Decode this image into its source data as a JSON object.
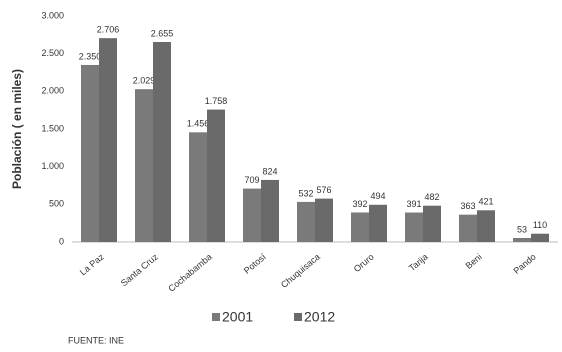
{
  "chart_data": {
    "type": "bar",
    "y_label": "Población ( en miles)",
    "source": "FUENTE: INE",
    "categories": [
      "La Paz",
      "Santa Cruz",
      "Cochabamba",
      "Potosí",
      "Chuquisaca",
      "Oruro",
      "Tarija",
      "Beni",
      "Pando"
    ],
    "series": [
      {
        "name": "2001",
        "color": "#7a7a7a",
        "values": [
          2350,
          2029,
          1456,
          709,
          532,
          392,
          391,
          363,
          53
        ],
        "value_labels": [
          "2.350",
          "2.029",
          "1.456",
          "709",
          "532",
          "392",
          "391",
          "363",
          "53"
        ]
      },
      {
        "name": "2012",
        "color": "#6a6a6a",
        "values": [
          2706,
          2655,
          1758,
          824,
          576,
          494,
          482,
          421,
          110
        ],
        "value_labels": [
          "2.706",
          "2.655",
          "1.758",
          "824",
          "576",
          "494",
          "482",
          "421",
          "110"
        ]
      }
    ],
    "ylim": [
      0,
      3000
    ],
    "yticks": [
      0,
      500,
      {
        "value": 1000,
        "label": "1.000"
      },
      {
        "value": 1500,
        "label": "1.500"
      },
      {
        "value": 2000,
        "label": "2.000"
      },
      {
        "value": 2500,
        "label": "2.500"
      },
      {
        "value": 3000,
        "label": "3.000"
      }
    ],
    "grid": false,
    "legend": "bottom"
  }
}
